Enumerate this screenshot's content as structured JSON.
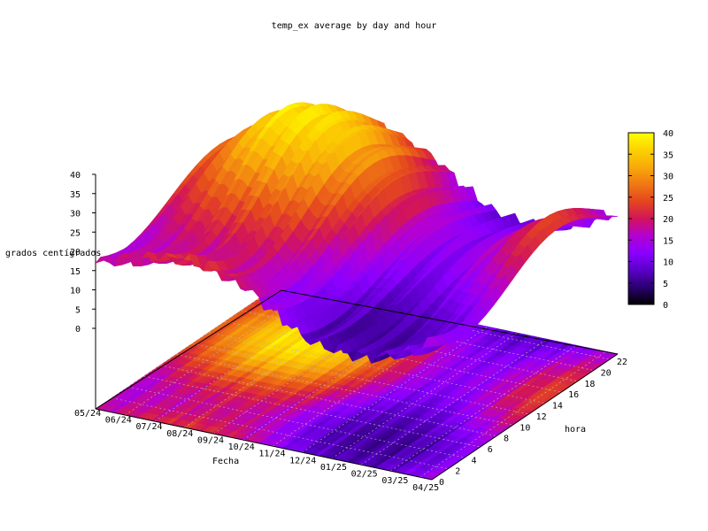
{
  "chart_data": {
    "type": "surface3d",
    "title": "temp_ex average by day and hour",
    "xlabel": "Fecha",
    "ylabel": "hora",
    "zlabel": "grados centígrados",
    "x_ticks": [
      "05/24",
      "06/24",
      "07/24",
      "08/24",
      "09/24",
      "10/24",
      "11/24",
      "12/24",
      "01/25",
      "02/25",
      "03/25",
      "04/25"
    ],
    "y_ticks": [
      "0",
      "2",
      "4",
      "6",
      "8",
      "10",
      "12",
      "14",
      "16",
      "18",
      "20",
      "22"
    ],
    "z_ticks": [
      "0",
      "5",
      "10",
      "15",
      "20",
      "25",
      "30",
      "35",
      "40"
    ],
    "zlim": [
      0,
      40
    ],
    "colorbar": {
      "ticks": [
        "0",
        "5",
        "10",
        "15",
        "20",
        "25",
        "30",
        "35",
        "40"
      ],
      "range": [
        0,
        40
      ]
    },
    "palette": [
      "#000000",
      "#2a0070",
      "#5a00c8",
      "#8a00ff",
      "#b400d2",
      "#d2145a",
      "#e4461e",
      "#f07814",
      "#f8aa0a",
      "#fcd200",
      "#ffff00"
    ],
    "hours": [
      0,
      2,
      4,
      6,
      8,
      10,
      12,
      14,
      16,
      18,
      20,
      22
    ],
    "monthly_min_temp": [
      15,
      17,
      18,
      19,
      18,
      16,
      11,
      7,
      6,
      6,
      8,
      12
    ],
    "monthly_max_temp": [
      25,
      31,
      37,
      38,
      35,
      29,
      21,
      14,
      12,
      14,
      20,
      24
    ],
    "grid": true,
    "projection_on_base": true
  }
}
